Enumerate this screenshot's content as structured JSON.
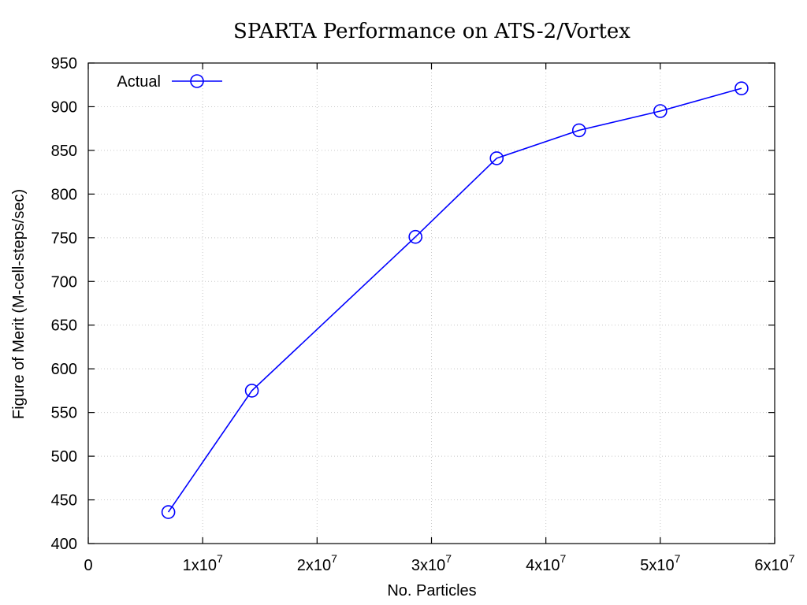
{
  "chart_data": {
    "type": "line",
    "title": "SPARTA Performance on ATS-2/Vortex",
    "xlabel": "No. Particles",
    "ylabel": "Figure of Merit (M-cell-steps/sec)",
    "xlim": [
      0,
      60000000
    ],
    "ylim": [
      400,
      950
    ],
    "x_ticks": [
      {
        "value": 0,
        "mantissa": "0",
        "exponent": ""
      },
      {
        "value": 10000000,
        "mantissa": "1x10",
        "exponent": "7"
      },
      {
        "value": 20000000,
        "mantissa": "2x10",
        "exponent": "7"
      },
      {
        "value": 30000000,
        "mantissa": "3x10",
        "exponent": "7"
      },
      {
        "value": 40000000,
        "mantissa": "4x10",
        "exponent": "7"
      },
      {
        "value": 50000000,
        "mantissa": "5x10",
        "exponent": "7"
      },
      {
        "value": 60000000,
        "mantissa": "6x10",
        "exponent": "7"
      }
    ],
    "y_ticks": [
      400,
      450,
      500,
      550,
      600,
      650,
      700,
      750,
      800,
      850,
      900,
      950
    ],
    "grid": true,
    "legend_position": "top-left",
    "series": [
      {
        "name": "Actual",
        "color": "#0000ff",
        "marker": "circle",
        "x": [
          7000000,
          14300000,
          28600000,
          35700000,
          42900000,
          50000000,
          57100000
        ],
        "y": [
          436,
          575,
          751,
          841,
          873,
          895,
          921
        ]
      }
    ]
  }
}
